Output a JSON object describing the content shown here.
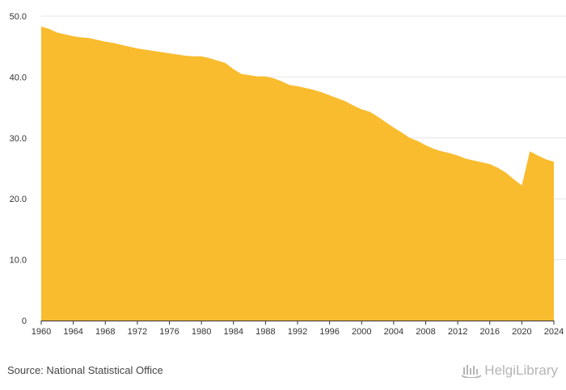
{
  "chart_data": {
    "type": "area",
    "title": "",
    "xlabel": "",
    "ylabel": "",
    "ylim": [
      0,
      50
    ],
    "xlim": [
      1960,
      2024
    ],
    "grid": true,
    "series": [
      {
        "name": "Value",
        "color": "#F9BC2E",
        "x": [
          1960,
          1961,
          1962,
          1963,
          1964,
          1965,
          1966,
          1967,
          1968,
          1969,
          1970,
          1971,
          1972,
          1973,
          1974,
          1975,
          1976,
          1977,
          1978,
          1979,
          1980,
          1981,
          1982,
          1983,
          1984,
          1985,
          1986,
          1987,
          1988,
          1989,
          1990,
          1991,
          1992,
          1993,
          1994,
          1995,
          1996,
          1997,
          1998,
          1999,
          2000,
          2001,
          2002,
          2003,
          2004,
          2005,
          2006,
          2007,
          2008,
          2009,
          2010,
          2011,
          2012,
          2013,
          2014,
          2015,
          2016,
          2017,
          2018,
          2019,
          2020,
          2021,
          2022,
          2023,
          2024
        ],
        "values": [
          48.3,
          47.9,
          47.3,
          47.0,
          46.7,
          46.5,
          46.4,
          46.1,
          45.8,
          45.6,
          45.3,
          45.0,
          44.7,
          44.5,
          44.3,
          44.1,
          43.9,
          43.7,
          43.5,
          43.4,
          43.4,
          43.1,
          42.7,
          42.3,
          41.3,
          40.5,
          40.3,
          40.1,
          40.1,
          39.8,
          39.3,
          38.7,
          38.5,
          38.2,
          37.9,
          37.5,
          37.0,
          36.5,
          36.0,
          35.3,
          34.7,
          34.3,
          33.5,
          32.6,
          31.7,
          30.9,
          30.0,
          29.5,
          28.8,
          28.2,
          27.8,
          27.5,
          27.1,
          26.6,
          26.3,
          26.0,
          25.7,
          25.1,
          24.3,
          23.2,
          22.2,
          27.8,
          27.1,
          26.5,
          26.1
        ]
      }
    ],
    "y_ticks": [
      "0",
      "10.0",
      "20.0",
      "30.0",
      "40.0",
      "50.0"
    ],
    "y_tick_values": [
      0,
      10,
      20,
      30,
      40,
      50
    ],
    "x_ticks": [
      "1960",
      "1964",
      "1968",
      "1972",
      "1976",
      "1980",
      "1984",
      "1988",
      "1992",
      "1996",
      "2000",
      "2004",
      "2008",
      "2012",
      "2016",
      "2020",
      "2024"
    ],
    "x_tick_values": [
      1960,
      1964,
      1968,
      1972,
      1976,
      1980,
      1984,
      1988,
      1992,
      1996,
      2000,
      2004,
      2008,
      2012,
      2016,
      2020,
      2024
    ]
  },
  "footer": {
    "source": "Source: National Statistical Office",
    "brand": "HelgiLibrary",
    "brand_icon": "helgi-library-logo-icon"
  },
  "colors": {
    "fill": "#F9BC2E",
    "grid": "#e6e6e6",
    "axis": "#333333",
    "text": "#333333",
    "brand": "#b5b5b5"
  }
}
